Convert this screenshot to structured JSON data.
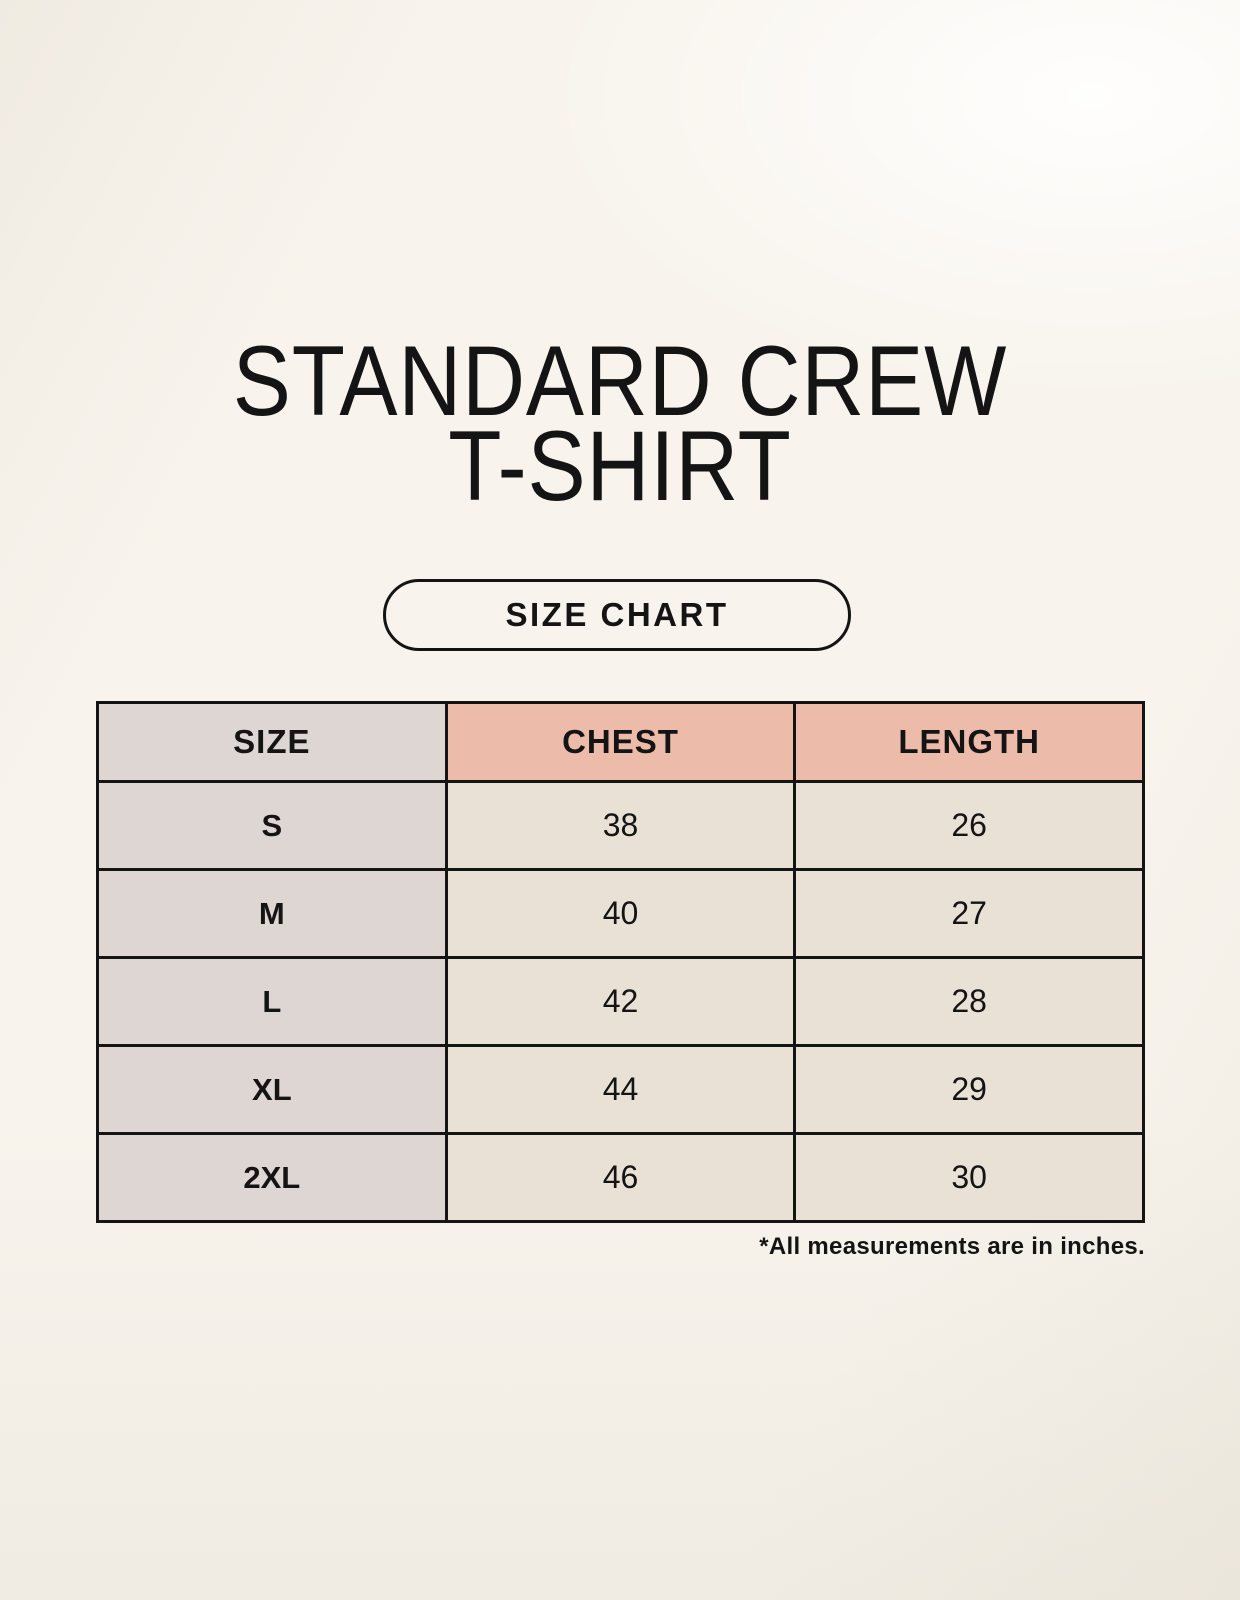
{
  "page": {
    "title_line1": "STANDARD CREW",
    "title_line2": "T-SHIRT",
    "button_label": "SIZE CHART",
    "footnote": "*All measurements are in inches."
  },
  "table": {
    "headers": {
      "size": "SIZE",
      "chest": "CHEST",
      "length": "LENGTH"
    },
    "rows": [
      {
        "size": "S",
        "chest": "38",
        "length": "26"
      },
      {
        "size": "M",
        "chest": "40",
        "length": "27"
      },
      {
        "size": "L",
        "chest": "42",
        "length": "28"
      },
      {
        "size": "XL",
        "chest": "44",
        "length": "29"
      },
      {
        "size": "2XL",
        "chest": "46",
        "length": "30"
      }
    ]
  },
  "colors": {
    "background": "#f8f4ed",
    "size_column_bg": "#ddd6d2",
    "measure_header_bg": "#edbbaa",
    "value_cell_bg": "#e9e1d6",
    "border": "#141414",
    "text": "#141414"
  },
  "chart_data": {
    "type": "table",
    "title": "STANDARD CREW T-SHIRT",
    "subtitle": "SIZE CHART",
    "columns": [
      "SIZE",
      "CHEST",
      "LENGTH"
    ],
    "rows": [
      [
        "S",
        38,
        26
      ],
      [
        "M",
        40,
        27
      ],
      [
        "L",
        42,
        28
      ],
      [
        "XL",
        44,
        29
      ],
      [
        "2XL",
        46,
        30
      ]
    ],
    "units": "inches",
    "note": "*All measurements are in inches."
  }
}
